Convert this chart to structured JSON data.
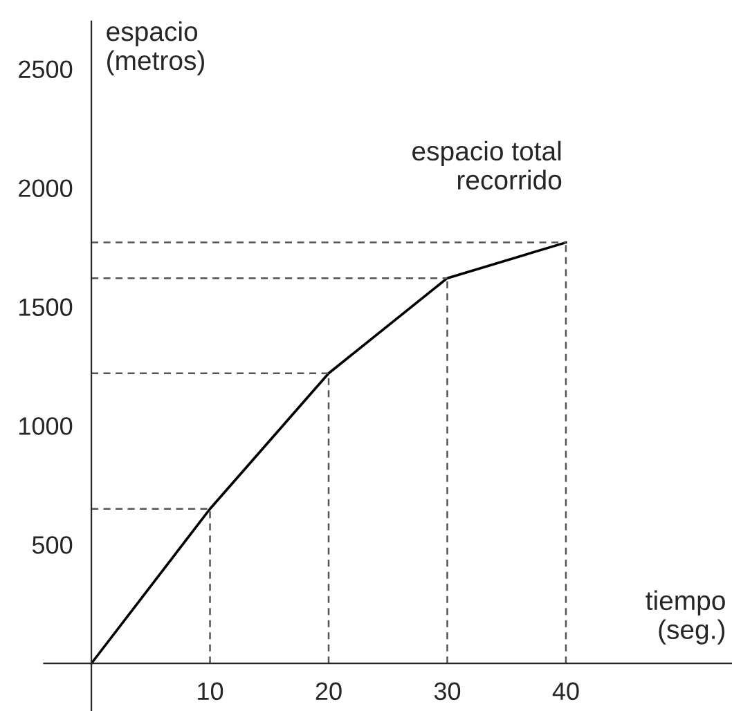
{
  "chart_data": {
    "type": "line",
    "xlabel": "tiempo\n(seg.)",
    "ylabel": "espacio\n(metros)",
    "annotations": [
      "espacio total\nrecorrido"
    ],
    "x": [
      0,
      10,
      20,
      30,
      40
    ],
    "series": [
      {
        "color": "#000000",
        "values": [
          0,
          650,
          1220,
          1620,
          1770
        ]
      }
    ],
    "xlim": [
      -4,
      54
    ],
    "ylim": [
      -200,
      2700
    ],
    "xticks": [
      10,
      20,
      30,
      40
    ],
    "yticks": [
      500,
      1000,
      1500,
      2000,
      2500
    ],
    "ref_lines": [
      {
        "axis": "x",
        "value": 10
      },
      {
        "axis": "x",
        "value": 20
      },
      {
        "axis": "x",
        "value": 30
      },
      {
        "axis": "x",
        "value": 40
      },
      {
        "axis": "y",
        "value": 650
      },
      {
        "axis": "y",
        "value": 1220
      },
      {
        "axis": "y",
        "value": 1620
      },
      {
        "axis": "y",
        "value": 1770
      }
    ],
    "grid": false,
    "marker": "none",
    "line_style": "solid"
  }
}
